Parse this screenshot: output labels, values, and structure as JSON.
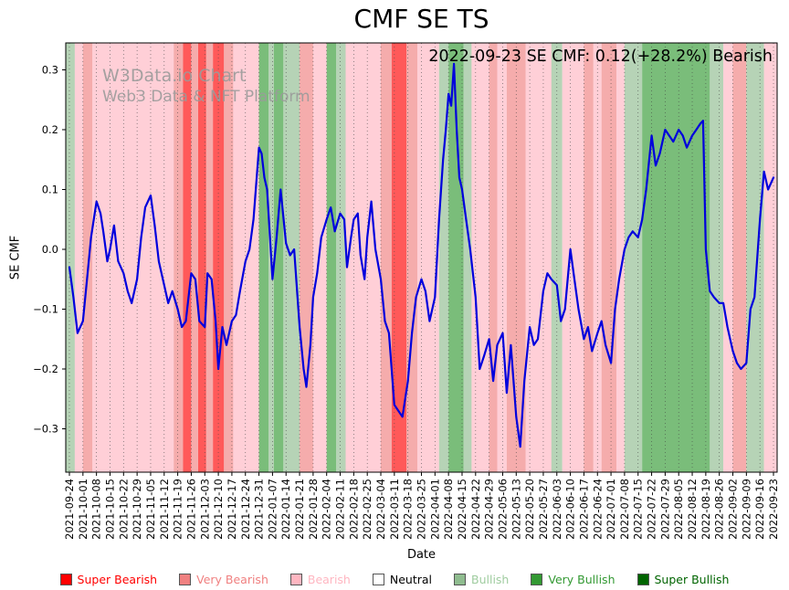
{
  "page": {
    "title": "CMF SE TS"
  },
  "annotation": {
    "text": "2022-09-23 SE CMF: 0.12(+28.2%) Bearish"
  },
  "watermark": {
    "line1": "W3Data.io Chart",
    "line2": "Web3 Data & NFT Platform"
  },
  "axes": {
    "xlabel": "Date",
    "ylabel": "SE CMF"
  },
  "legend": [
    {
      "label": "Super Bearish",
      "key": "super_bearish",
      "text_color": "#ff0000"
    },
    {
      "label": "Very Bearish",
      "key": "very_bearish",
      "text_color": "#f08080"
    },
    {
      "label": "Bearish",
      "key": "bearish",
      "text_color": "#ffb6c1"
    },
    {
      "label": "Neutral",
      "key": "neutral",
      "text_color": "#000000"
    },
    {
      "label": "Bullish",
      "key": "bullish",
      "text_color": "#9fcc9f"
    },
    {
      "label": "Very Bullish",
      "key": "very_bullish",
      "text_color": "#339933"
    },
    {
      "label": "Super Bullish",
      "key": "super_bullish",
      "text_color": "#006400"
    }
  ],
  "chart_data": {
    "type": "line",
    "title": "CMF SE TS",
    "xlabel": "Date",
    "ylabel": "SE CMF",
    "ylim": [
      -0.3725,
      0.345
    ],
    "yticks": [
      -0.3,
      -0.2,
      -0.1,
      0.0,
      0.1,
      0.2,
      0.3
    ],
    "grid": "vertical-dotted",
    "line_color": "#0000dd",
    "latest": {
      "date": "2022-09-23",
      "value": 0.12,
      "change_pct": 28.2,
      "classification": "Bearish"
    },
    "categories": [
      "2021-09-24",
      "2021-10-01",
      "2021-10-08",
      "2021-10-15",
      "2021-10-22",
      "2021-10-29",
      "2021-11-05",
      "2021-11-12",
      "2021-11-19",
      "2021-11-26",
      "2021-12-03",
      "2021-12-10",
      "2021-12-17",
      "2021-12-24",
      "2021-12-31",
      "2022-01-07",
      "2022-01-14",
      "2022-01-21",
      "2022-01-28",
      "2022-02-04",
      "2022-02-11",
      "2022-02-18",
      "2022-02-25",
      "2022-03-04",
      "2022-03-11",
      "2022-03-18",
      "2022-03-25",
      "2022-04-01",
      "2022-04-08",
      "2022-04-15",
      "2022-04-22",
      "2022-04-29",
      "2022-05-06",
      "2022-05-13",
      "2022-05-20",
      "2022-05-27",
      "2022-06-03",
      "2022-06-10",
      "2022-06-17",
      "2022-06-24",
      "2022-07-01",
      "2022-07-08",
      "2022-07-15",
      "2022-07-22",
      "2022-07-29",
      "2022-08-05",
      "2022-08-12",
      "2022-08-19",
      "2022-08-26",
      "2022-09-02",
      "2022-09-09",
      "2022-09-16",
      "2022-09-23"
    ],
    "series": [
      {
        "name": "SE CMF",
        "x": [
          0,
          0.3,
          0.6,
          1,
          1.3,
          1.6,
          2,
          2.3,
          2.5,
          2.8,
          3,
          3.3,
          3.6,
          4,
          4.3,
          4.6,
          5,
          5.3,
          5.6,
          6,
          6.3,
          6.6,
          7,
          7.3,
          7.6,
          8,
          8.3,
          8.6,
          9,
          9.3,
          9.6,
          10,
          10.2,
          10.5,
          10.8,
          11,
          11.3,
          11.6,
          12,
          12.3,
          12.6,
          13,
          13.3,
          13.6,
          14,
          14.2,
          14.4,
          14.6,
          15,
          15.3,
          15.6,
          16,
          16.3,
          16.6,
          17,
          17.3,
          17.5,
          17.8,
          18,
          18.3,
          18.6,
          19,
          19.3,
          19.6,
          20,
          20.3,
          20.5,
          20.8,
          21,
          21.3,
          21.5,
          21.8,
          22,
          22.3,
          22.6,
          23,
          23.3,
          23.6,
          24,
          24.3,
          24.6,
          25,
          25.3,
          25.6,
          26,
          26.3,
          26.6,
          27,
          27.3,
          27.6,
          27.8,
          28,
          28.2,
          28.4,
          28.6,
          28.8,
          29,
          29.3,
          29.6,
          30,
          30.3,
          30.6,
          31,
          31.3,
          31.6,
          32,
          32.3,
          32.6,
          33,
          33.3,
          33.6,
          34,
          34.3,
          34.6,
          35,
          35.3,
          35.6,
          36,
          36.3,
          36.6,
          37,
          37.3,
          37.6,
          38,
          38.3,
          38.6,
          39,
          39.3,
          39.6,
          40,
          40.3,
          40.6,
          41,
          41.3,
          41.6,
          42,
          42.3,
          42.6,
          43,
          43.3,
          43.6,
          44,
          44.3,
          44.6,
          45,
          45.3,
          45.6,
          46,
          46.3,
          46.6,
          46.8,
          47,
          47.3,
          47.6,
          48,
          48.3,
          48.6,
          49,
          49.3,
          49.6,
          50,
          50.3,
          50.6,
          51,
          51.3,
          51.6,
          52
        ],
        "values": [
          -0.03,
          -0.08,
          -0.14,
          -0.12,
          -0.05,
          0.02,
          0.08,
          0.06,
          0.03,
          -0.02,
          0.0,
          0.04,
          -0.02,
          -0.04,
          -0.07,
          -0.09,
          -0.05,
          0.02,
          0.07,
          0.09,
          0.04,
          -0.02,
          -0.06,
          -0.09,
          -0.07,
          -0.1,
          -0.13,
          -0.12,
          -0.04,
          -0.05,
          -0.12,
          -0.13,
          -0.04,
          -0.05,
          -0.12,
          -0.2,
          -0.13,
          -0.16,
          -0.12,
          -0.11,
          -0.07,
          -0.02,
          0.0,
          0.05,
          0.17,
          0.16,
          0.12,
          0.1,
          -0.05,
          0.02,
          0.1,
          0.01,
          -0.01,
          0.0,
          -0.13,
          -0.2,
          -0.23,
          -0.16,
          -0.08,
          -0.04,
          0.02,
          0.05,
          0.07,
          0.03,
          0.06,
          0.05,
          -0.03,
          0.02,
          0.05,
          0.06,
          -0.01,
          -0.05,
          0.02,
          0.08,
          0.0,
          -0.05,
          -0.12,
          -0.14,
          -0.26,
          -0.27,
          -0.28,
          -0.22,
          -0.14,
          -0.08,
          -0.05,
          -0.07,
          -0.12,
          -0.08,
          0.05,
          0.15,
          0.2,
          0.26,
          0.24,
          0.31,
          0.2,
          0.12,
          0.1,
          0.05,
          0.0,
          -0.08,
          -0.2,
          -0.18,
          -0.15,
          -0.22,
          -0.16,
          -0.14,
          -0.24,
          -0.16,
          -0.28,
          -0.33,
          -0.22,
          -0.13,
          -0.16,
          -0.15,
          -0.07,
          -0.04,
          -0.05,
          -0.06,
          -0.12,
          -0.1,
          0.0,
          -0.05,
          -0.1,
          -0.15,
          -0.13,
          -0.17,
          -0.14,
          -0.12,
          -0.16,
          -0.19,
          -0.1,
          -0.05,
          0.0,
          0.02,
          0.03,
          0.02,
          0.05,
          0.1,
          0.19,
          0.14,
          0.16,
          0.2,
          0.19,
          0.18,
          0.2,
          0.19,
          0.17,
          0.19,
          0.2,
          0.21,
          0.215,
          0.0,
          -0.07,
          -0.08,
          -0.09,
          -0.09,
          -0.13,
          -0.17,
          -0.19,
          -0.2,
          -0.19,
          -0.1,
          -0.08,
          0.05,
          0.13,
          0.1,
          0.12
        ]
      }
    ],
    "band_colors": {
      "super_bearish": "#ff0000",
      "very_bearish": "#f08080",
      "bearish": "#ffb6c1",
      "neutral": "#ffffff",
      "bullish": "#8fbc8f",
      "very_bullish": "#339933",
      "super_bullish": "#006400"
    },
    "band_opacity": 0.65,
    "bands": [
      {
        "start": 0.0,
        "end": 0.4,
        "category": "bullish"
      },
      {
        "start": 0.4,
        "end": 1.0,
        "category": "bearish"
      },
      {
        "start": 1.0,
        "end": 1.7,
        "category": "very_bearish"
      },
      {
        "start": 1.7,
        "end": 7.7,
        "category": "bearish"
      },
      {
        "start": 7.7,
        "end": 8.4,
        "category": "very_bearish"
      },
      {
        "start": 8.4,
        "end": 9.0,
        "category": "super_bearish"
      },
      {
        "start": 9.0,
        "end": 9.5,
        "category": "very_bearish"
      },
      {
        "start": 9.5,
        "end": 10.1,
        "category": "super_bearish"
      },
      {
        "start": 10.1,
        "end": 10.6,
        "category": "very_bearish"
      },
      {
        "start": 10.6,
        "end": 11.4,
        "category": "super_bearish"
      },
      {
        "start": 11.4,
        "end": 12.1,
        "category": "very_bearish"
      },
      {
        "start": 12.1,
        "end": 14.0,
        "category": "bearish"
      },
      {
        "start": 14.0,
        "end": 14.7,
        "category": "very_bullish"
      },
      {
        "start": 14.7,
        "end": 15.1,
        "category": "bullish"
      },
      {
        "start": 15.1,
        "end": 15.8,
        "category": "very_bullish"
      },
      {
        "start": 15.8,
        "end": 17.0,
        "category": "bullish"
      },
      {
        "start": 17.0,
        "end": 18.0,
        "category": "very_bearish"
      },
      {
        "start": 18.0,
        "end": 19.0,
        "category": "bearish"
      },
      {
        "start": 19.0,
        "end": 19.7,
        "category": "very_bullish"
      },
      {
        "start": 19.7,
        "end": 20.4,
        "category": "bullish"
      },
      {
        "start": 20.4,
        "end": 23.0,
        "category": "bearish"
      },
      {
        "start": 23.0,
        "end": 23.8,
        "category": "very_bearish"
      },
      {
        "start": 23.8,
        "end": 24.9,
        "category": "super_bearish"
      },
      {
        "start": 24.9,
        "end": 25.7,
        "category": "very_bearish"
      },
      {
        "start": 25.7,
        "end": 27.3,
        "category": "bearish"
      },
      {
        "start": 27.3,
        "end": 28.0,
        "category": "bullish"
      },
      {
        "start": 28.0,
        "end": 29.1,
        "category": "very_bullish"
      },
      {
        "start": 29.1,
        "end": 29.7,
        "category": "bullish"
      },
      {
        "start": 29.7,
        "end": 31.0,
        "category": "bearish"
      },
      {
        "start": 31.0,
        "end": 31.6,
        "category": "very_bearish"
      },
      {
        "start": 31.6,
        "end": 32.3,
        "category": "bearish"
      },
      {
        "start": 32.3,
        "end": 33.7,
        "category": "very_bearish"
      },
      {
        "start": 33.7,
        "end": 35.6,
        "category": "bearish"
      },
      {
        "start": 35.6,
        "end": 36.4,
        "category": "bullish"
      },
      {
        "start": 36.4,
        "end": 38.0,
        "category": "bearish"
      },
      {
        "start": 38.0,
        "end": 38.7,
        "category": "very_bearish"
      },
      {
        "start": 38.7,
        "end": 39.3,
        "category": "bearish"
      },
      {
        "start": 39.3,
        "end": 40.4,
        "category": "very_bearish"
      },
      {
        "start": 40.4,
        "end": 41.0,
        "category": "bearish"
      },
      {
        "start": 41.0,
        "end": 42.3,
        "category": "bullish"
      },
      {
        "start": 42.3,
        "end": 47.3,
        "category": "very_bullish"
      },
      {
        "start": 47.3,
        "end": 48.3,
        "category": "bullish"
      },
      {
        "start": 48.3,
        "end": 49.0,
        "category": "bearish"
      },
      {
        "start": 49.0,
        "end": 50.0,
        "category": "very_bearish"
      },
      {
        "start": 50.0,
        "end": 51.3,
        "category": "bullish"
      },
      {
        "start": 51.3,
        "end": 52.0,
        "category": "bearish"
      }
    ]
  }
}
